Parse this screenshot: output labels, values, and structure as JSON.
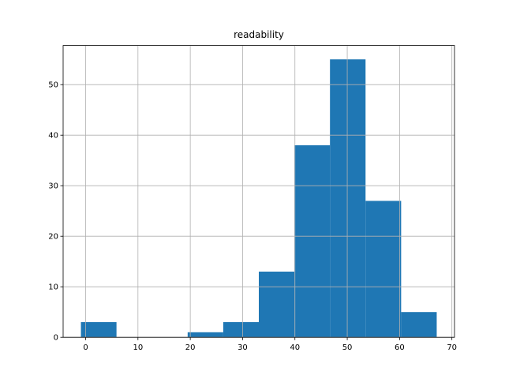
{
  "chart_data": {
    "type": "histogram",
    "title": "readability",
    "bins": [
      -0.9,
      5.9,
      12.7,
      19.5,
      26.3,
      33.1,
      39.9,
      46.7,
      53.5,
      60.3,
      67.1
    ],
    "values": [
      3,
      0,
      0,
      1,
      3,
      13,
      38,
      55,
      27,
      5
    ],
    "color": "#1f77b4",
    "xlim": [
      -4.3,
      70.5
    ],
    "xticks": [
      0,
      10,
      20,
      30,
      40,
      50,
      60,
      70
    ],
    "ylim": [
      0,
      57.75
    ],
    "yticks": [
      0,
      10,
      20,
      30,
      40,
      50
    ],
    "grid": true
  }
}
